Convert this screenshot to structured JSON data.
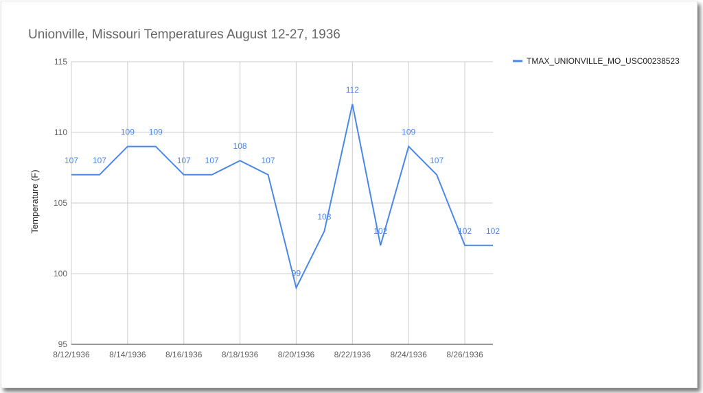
{
  "chart_data": {
    "type": "line",
    "title": "Unionville, Missouri Temperatures August 12-27, 1936",
    "xlabel": "",
    "ylabel": "Temperature (F)",
    "ylim": [
      95,
      115
    ],
    "yticks": [
      "95",
      "100",
      "105",
      "110",
      "115"
    ],
    "x": [
      "8/12/1936",
      "8/13/1936",
      "8/14/1936",
      "8/15/1936",
      "8/16/1936",
      "8/17/1936",
      "8/18/1936",
      "8/19/1936",
      "8/20/1936",
      "8/21/1936",
      "8/22/1936",
      "8/23/1936",
      "8/24/1936",
      "8/25/1936",
      "8/26/1936",
      "8/27/1936"
    ],
    "xtick_labels": [
      "8/12/1936",
      "8/14/1936",
      "8/16/1936",
      "8/18/1936",
      "8/20/1936",
      "8/22/1936",
      "8/24/1936",
      "8/26/1936"
    ],
    "series": [
      {
        "name": "TMAX_UNIONVILLE_MO_USC00238523",
        "color": "#4a86e8",
        "values": [
          107,
          107,
          109,
          109,
          107,
          107,
          108,
          107,
          99,
          103,
          112,
          102,
          109,
          107,
          102,
          102
        ]
      }
    ],
    "grid": true,
    "legend_position": "right"
  }
}
